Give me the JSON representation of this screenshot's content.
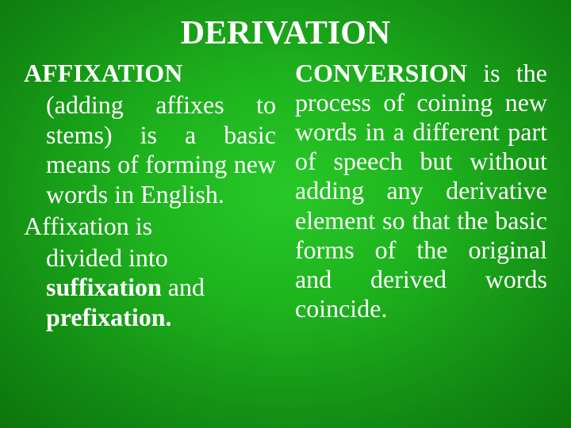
{
  "slide": {
    "title": "DERIVATION",
    "title_fontsize": 42,
    "left": {
      "heading": "AFFIXATION",
      "body1": "(adding affixes to stems) is a basic means of forming new words in English.",
      "body2a": "Affixation is",
      "body2b": "divided into ",
      "suffixation": "suffixation",
      "and": " and ",
      "prefixation": "prefixation.",
      "fontsize": 32
    },
    "right": {
      "heading": "CONVERSION",
      "body": " is the process of coining new words in a different part of speech but without adding any derivative element so that the basic forms of the original and derived words coincide.",
      "fontsize": 32
    },
    "text_color": "#ffffff",
    "font_family": "Times New Roman"
  }
}
